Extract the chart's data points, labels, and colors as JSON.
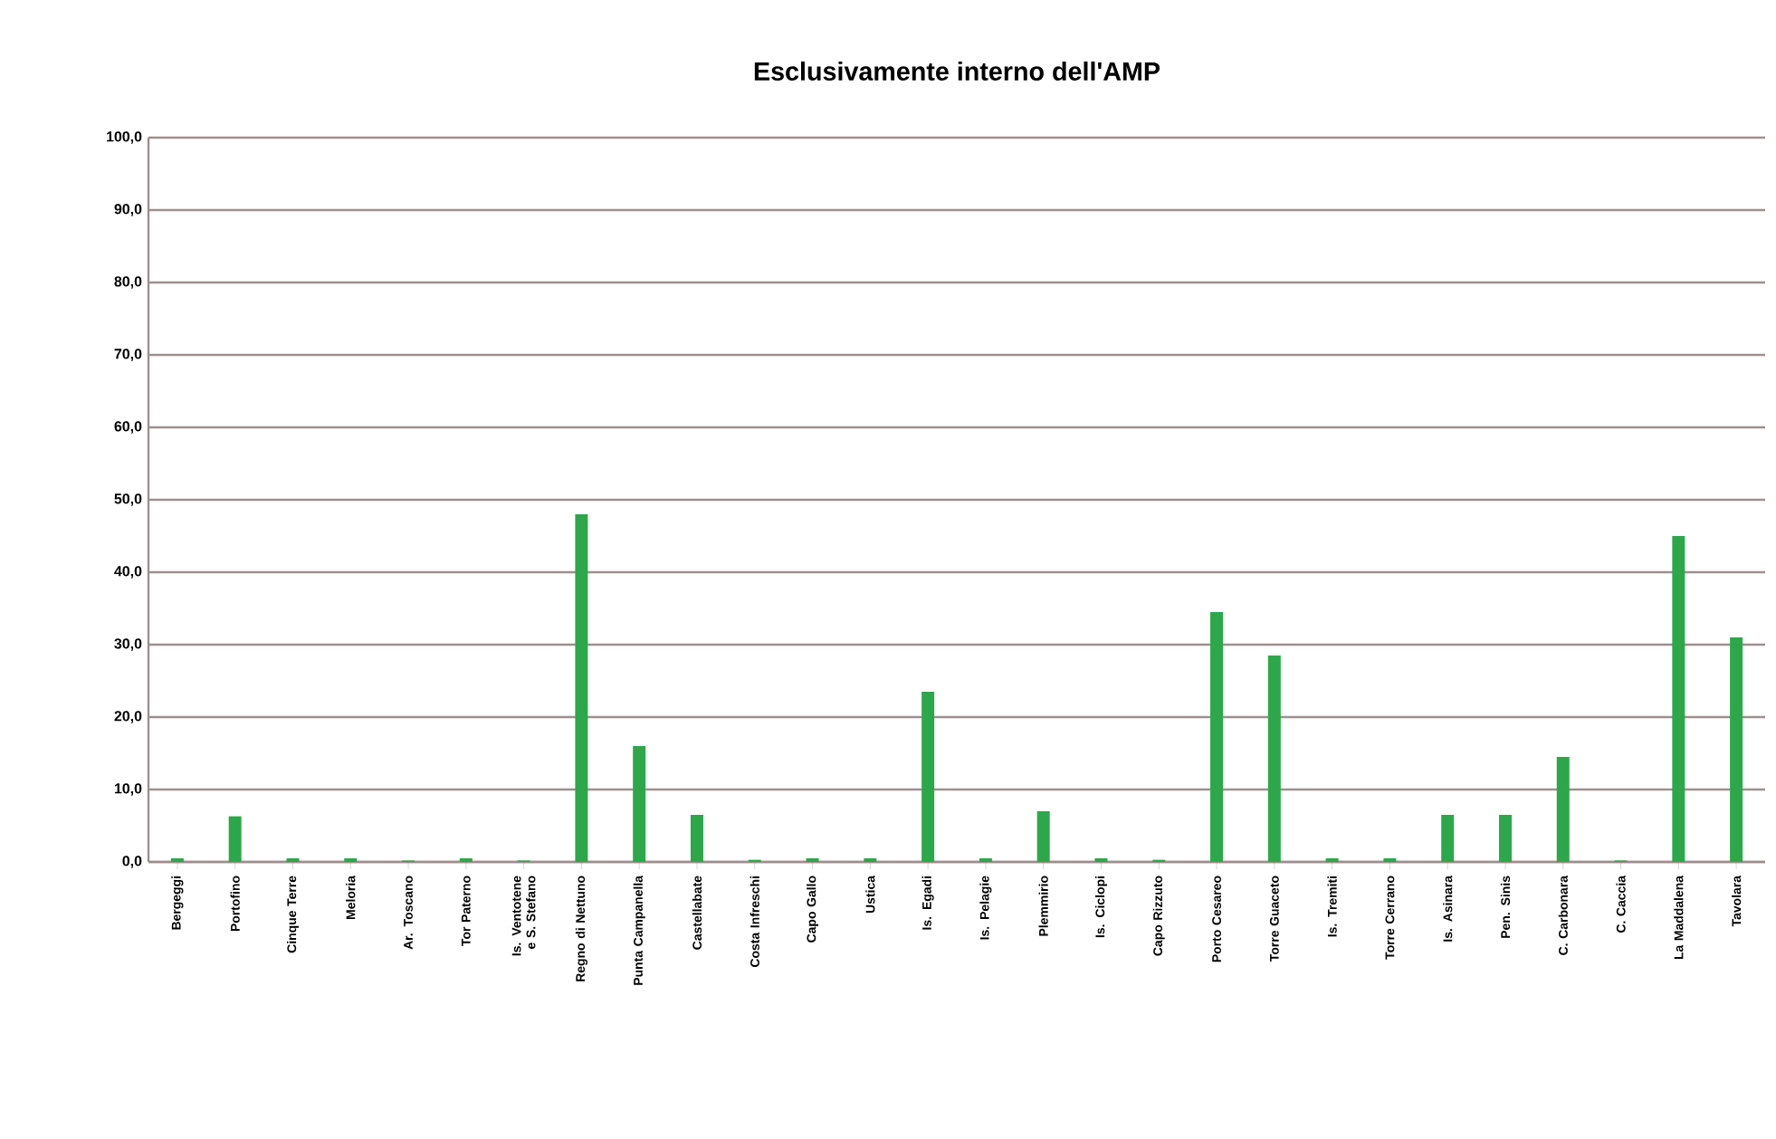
{
  "chart_data": {
    "type": "bar",
    "title": "Esclusivamente interno dell'AMP",
    "categories": [
      "Bergeggi",
      "Portofino",
      "Cinque Terre",
      "Meloria",
      "Ar. Toscano",
      "Tor Paterno",
      "Is. Ventotene e S. Stefano",
      "Regno di Nettuno",
      "Punta Campanella",
      "Castellabate",
      "Costa Infreschi",
      "Capo Gallo",
      "Ustica",
      "Is. Egadi",
      "Is. Pelagie",
      "Plemmirio",
      "Is. Ciclopi",
      "Capo Rizzuto",
      "Porto Cesareo",
      "Torre Guaceto",
      "Is. Tremiti",
      "Torre Cerrano",
      "Is. Asinara",
      "Pen. Sinis",
      "C. Carbonara",
      "C. Caccia",
      "La Maddalena",
      "Tavolara"
    ],
    "values": [
      0.5,
      6.3,
      0.5,
      0.5,
      0.2,
      0.5,
      0.2,
      48,
      16,
      6.5,
      0.3,
      0.5,
      0.5,
      23.5,
      0.5,
      7,
      0.5,
      0.3,
      34.5,
      28.5,
      0.5,
      0.5,
      6.5,
      6.5,
      14.5,
      0.2,
      45,
      31
    ],
    "color": "#2ca84a",
    "ylim": [
      0,
      100
    ],
    "yticks": [
      {
        "value": 0,
        "label": "0,0"
      },
      {
        "value": 10,
        "label": "10,0"
      },
      {
        "value": 20,
        "label": "20,0"
      },
      {
        "value": 30,
        "label": "30,0"
      },
      {
        "value": 40,
        "label": "40,0"
      },
      {
        "value": 50,
        "label": "50,0"
      },
      {
        "value": 60,
        "label": "60,0"
      },
      {
        "value": 70,
        "label": "70,0"
      },
      {
        "value": 80,
        "label": "80,0"
      },
      {
        "value": 90,
        "label": "90,0"
      },
      {
        "value": 100,
        "label": "100,0"
      }
    ],
    "grid": "y"
  }
}
